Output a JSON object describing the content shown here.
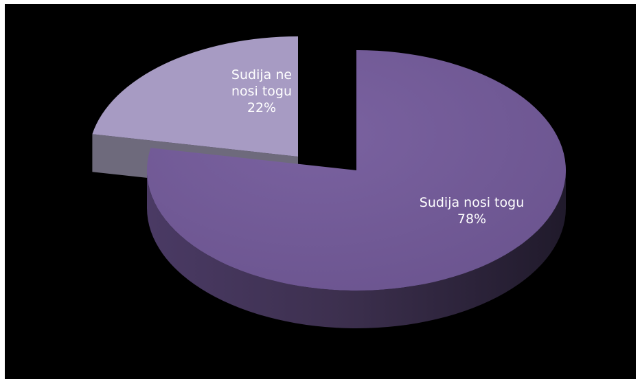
{
  "chart_data": {
    "type": "pie",
    "style": "3d-exploded",
    "background": "#000000",
    "slices": [
      {
        "category": "Sudija nosi togu",
        "value": 78,
        "label_lines": [
          "Sudija nosi togu",
          "78%"
        ],
        "color": "#725a93"
      },
      {
        "category": "Sudija ne nosi togu",
        "value": 22,
        "label_lines": [
          "Sudija ne",
          "nosi togu",
          "22%"
        ],
        "color": "#a79bc3"
      }
    ]
  }
}
